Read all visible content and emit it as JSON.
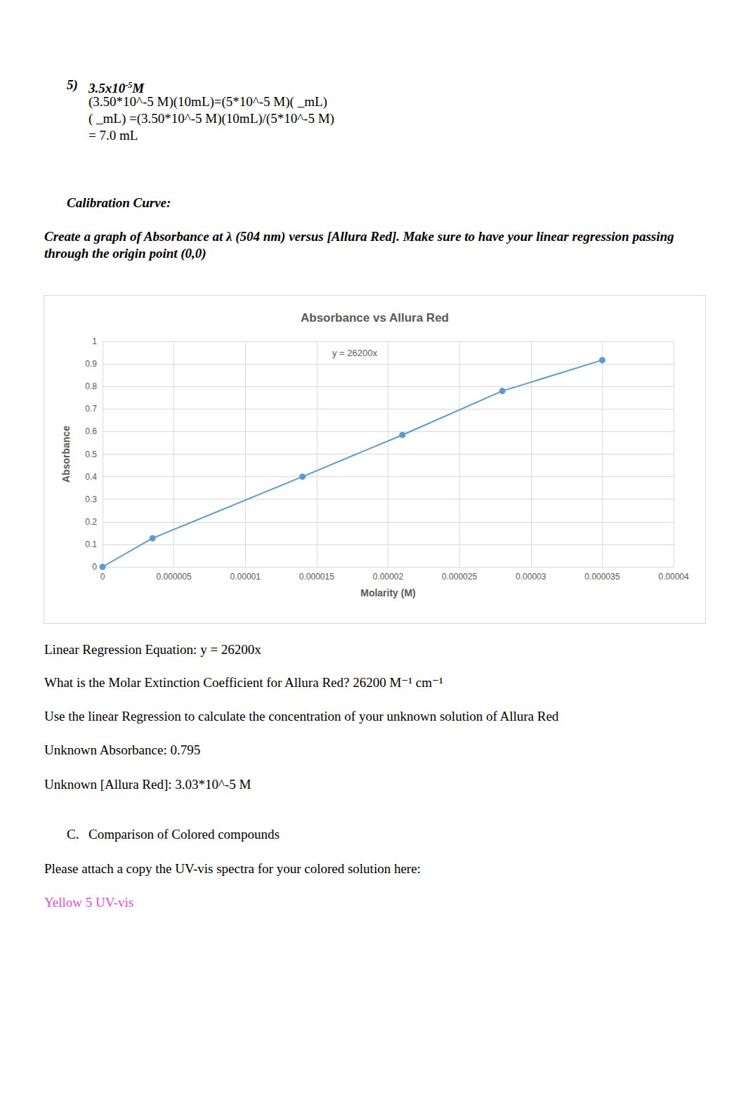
{
  "document": {
    "item": {
      "number": "5)",
      "value": {
        "base": "3.5x10",
        "sup": "-5",
        "unit": "M"
      },
      "lines": [
        "(3.50*10^-5 M)(10mL)=(5*10^-5 M)( _mL)",
        "( _mL) =(3.50*10^-5 M)(10mL)/(5*10^-5 M)",
        "= 7.0 mL"
      ]
    },
    "section_heading": "Calibration Curve:",
    "instruction": "Create a graph of Absorbance at λ (504 nm) versus [Allura Red]. Make sure to have your linear regression passing through the origin point (0,0)",
    "body_lines": [
      "Linear Regression Equation: y = 26200x",
      "What is the Molar Extinction Coefficient for Allura Red? 26200 M⁻¹ cm⁻¹",
      "Use the linear Regression to calculate the concentration of your unknown solution of Allura Red",
      "Unknown Absorbance: 0.795",
      "Unknown [Allura Red]: 3.03*10^-5 M"
    ],
    "section_c": {
      "letter": "C.",
      "title": "Comparison of Colored compounds"
    },
    "attach_prompt": "Please attach a copy the UV-vis spectra for your colored solution here:",
    "attachment_note": "Yellow 5 UV-vis"
  },
  "chart_data": {
    "type": "line",
    "title": "Absorbance vs Allura Red",
    "x_label": "Molarity (M)",
    "y_label": "Absorbance",
    "annotation": "y = 26200x",
    "x": [
      0,
      3.5e-06,
      1.4e-05,
      2.1e-05,
      2.8e-05,
      3.5e-05
    ],
    "values": [
      0,
      0.127,
      0.4,
      0.585,
      0.78,
      0.917
    ],
    "color": "#5b9bd5",
    "marker": "circle",
    "xlim": [
      0,
      4e-05
    ],
    "xticks": [
      0,
      5e-06,
      1e-05,
      1.5e-05,
      2e-05,
      2.5e-05,
      3e-05,
      3.5e-05,
      4e-05
    ],
    "ylim": [
      0,
      1
    ],
    "yticks": [
      0,
      0.1,
      0.2,
      0.3,
      0.4,
      0.5,
      0.6,
      0.7,
      0.8,
      0.9,
      1
    ],
    "grid": true
  }
}
